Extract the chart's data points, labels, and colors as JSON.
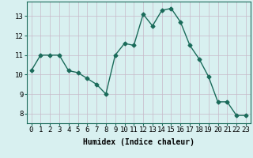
{
  "x": [
    0,
    1,
    2,
    3,
    4,
    5,
    6,
    7,
    8,
    9,
    10,
    11,
    12,
    13,
    14,
    15,
    16,
    17,
    18,
    19,
    20,
    21,
    22,
    23
  ],
  "y": [
    10.2,
    11.0,
    11.0,
    11.0,
    10.2,
    10.1,
    9.8,
    9.5,
    9.0,
    11.0,
    11.6,
    11.5,
    13.1,
    12.5,
    13.3,
    13.4,
    12.7,
    11.5,
    10.8,
    9.9,
    8.6,
    8.6,
    7.9,
    7.9
  ],
  "line_color": "#1a6b5a",
  "marker": "D",
  "marker_size": 2.5,
  "bg_color": "#d8f0f0",
  "grid_color": "#c8b8c8",
  "xlabel": "Humidex (Indice chaleur)",
  "xlabel_fontsize": 7,
  "xtick_labels": [
    "0",
    "1",
    "2",
    "3",
    "4",
    "5",
    "6",
    "7",
    "8",
    "9",
    "10",
    "11",
    "12",
    "13",
    "14",
    "15",
    "16",
    "17",
    "18",
    "19",
    "20",
    "21",
    "22",
    "23"
  ],
  "ylim": [
    7.5,
    13.75
  ],
  "yticks": [
    8,
    9,
    10,
    11,
    12,
    13
  ],
  "tick_fontsize": 6.5,
  "line_width": 1.0
}
